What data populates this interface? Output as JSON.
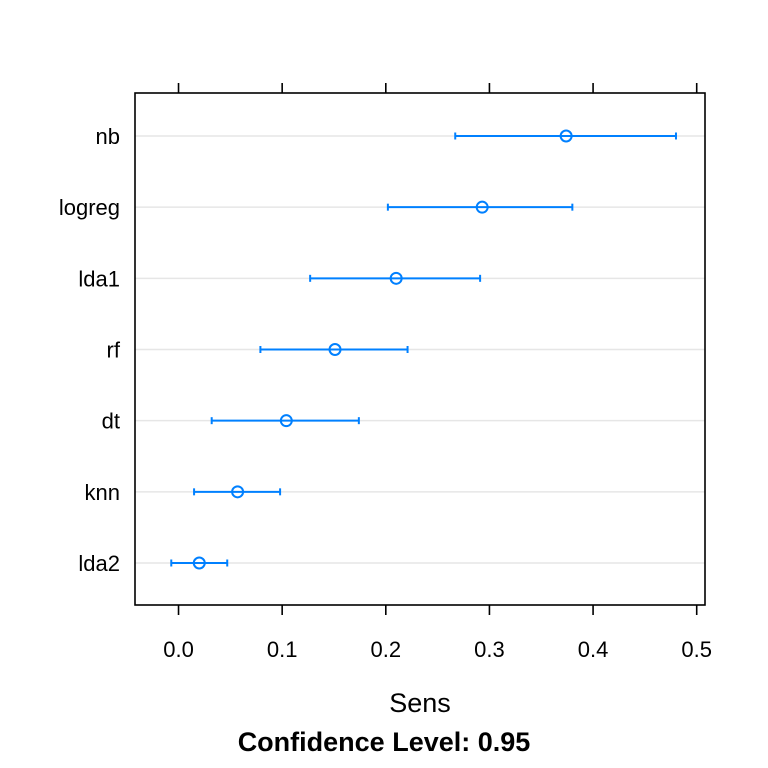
{
  "chart_data": {
    "type": "dotplot",
    "categories": [
      "nb",
      "logreg",
      "lda1",
      "rf",
      "dt",
      "knn",
      "lda2"
    ],
    "estimates": [
      0.374,
      0.293,
      0.21,
      0.151,
      0.104,
      0.057,
      0.02
    ],
    "lower": [
      0.267,
      0.202,
      0.127,
      0.079,
      0.032,
      0.015,
      -0.007
    ],
    "upper": [
      0.48,
      0.38,
      0.291,
      0.221,
      0.174,
      0.098,
      0.047
    ],
    "xlim": [
      -0.042,
      0.508
    ],
    "xticks": [
      0.0,
      0.1,
      0.2,
      0.3,
      0.4,
      0.5
    ],
    "xtick_labels": [
      "0.0",
      "0.1",
      "0.2",
      "0.3",
      "0.4",
      "0.5"
    ],
    "xlabel": "Sens",
    "subtitle": "Confidence Level: 0.95",
    "grid": true,
    "colors": {
      "series": "#0080ff",
      "grid": "#e6e6e6",
      "frame": "#000000"
    }
  }
}
